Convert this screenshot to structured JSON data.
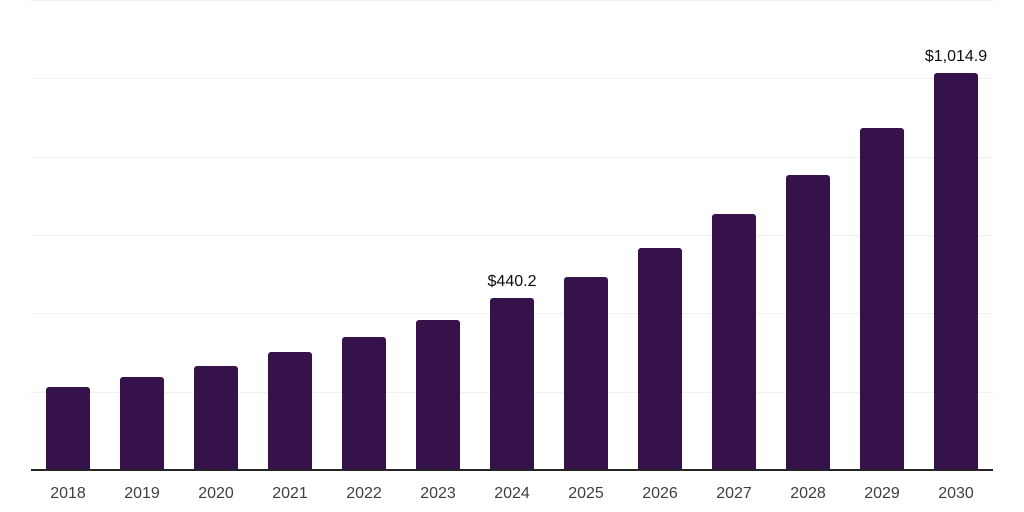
{
  "chart_data": {
    "type": "bar",
    "title": "",
    "xlabel": "",
    "ylabel": "",
    "categories": [
      "2018",
      "2019",
      "2020",
      "2021",
      "2022",
      "2023",
      "2024",
      "2025",
      "2026",
      "2027",
      "2028",
      "2029",
      "2030"
    ],
    "values": [
      212,
      238,
      266,
      302,
      340,
      384,
      440.2,
      494,
      568,
      654,
      754,
      872,
      1014.9
    ],
    "value_labels": [
      "",
      "",
      "",
      "",
      "",
      "",
      "$440.2",
      "",
      "",
      "",
      "",
      "",
      "$1,014.9"
    ],
    "ylim": [
      0,
      1200
    ],
    "gridline_values": [
      200,
      400,
      600,
      800,
      1000,
      1200
    ],
    "grid": "horizontal",
    "legend_position": "none",
    "y_tick_labels_shown": false,
    "colors": {
      "bar": "#36124B",
      "axis_line": "#242424",
      "gridline": "#f0f0f0",
      "value_label": "#0d0d0d",
      "tick_label": "#3f3f3f",
      "background": "#ffffff"
    }
  }
}
